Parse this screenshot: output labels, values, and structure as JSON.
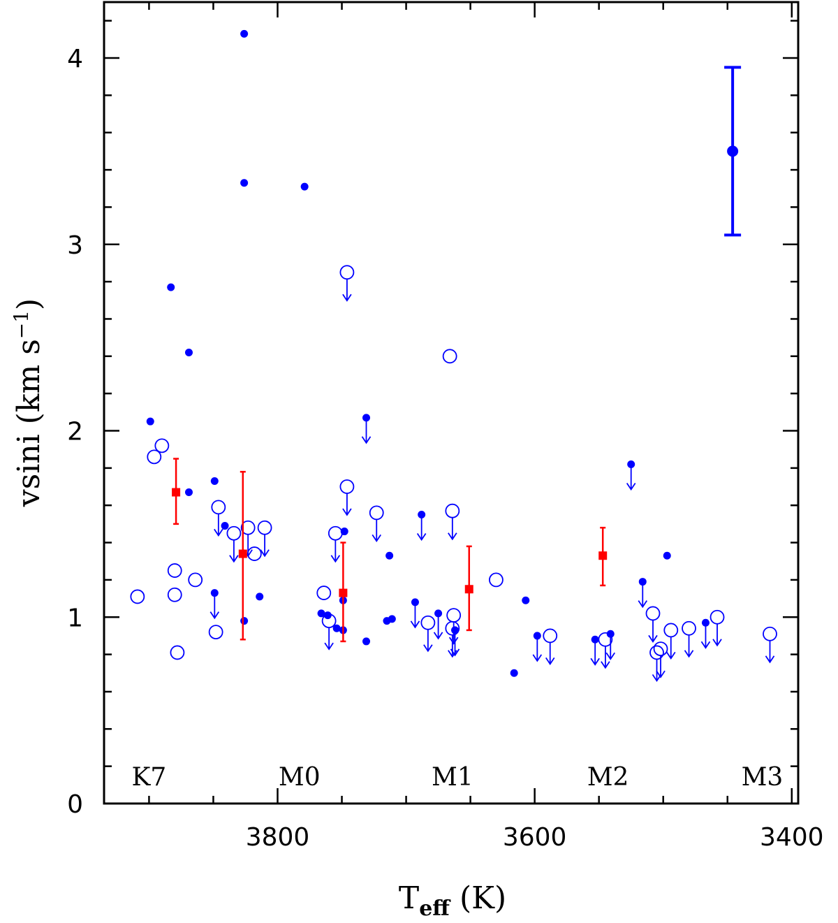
{
  "chart_data": {
    "type": "scatter",
    "title": "",
    "xlabel_main": "T",
    "xlabel_sub": "eff",
    "xlabel_unit": "(K)",
    "ylabel": "vsini (km s",
    "ylabel_sup": "−1",
    "ylabel_close": ")",
    "xlim": [
      3935,
      3395
    ],
    "ylim": [
      0,
      4.3
    ],
    "x_reversed": true,
    "x_ticks": [
      {
        "value": 3800,
        "label": "3800"
      },
      {
        "value": 3600,
        "label": "3600"
      },
      {
        "value": 3400,
        "label": "3400"
      }
    ],
    "y_ticks": [
      {
        "value": 0,
        "label": "0"
      },
      {
        "value": 1,
        "label": "1"
      },
      {
        "value": 2,
        "label": "2"
      },
      {
        "value": 3,
        "label": "3"
      },
      {
        "value": 4,
        "label": "4"
      }
    ],
    "spectral_types": [
      {
        "label": "K7",
        "x": 3900
      },
      {
        "label": "M0",
        "x": 3783
      },
      {
        "label": "M1",
        "x": 3664
      },
      {
        "label": "M2",
        "x": 3543
      },
      {
        "label": "M3",
        "x": 3423
      }
    ],
    "colors": {
      "measured": "#0000ff",
      "binned": "#ff0000",
      "axes": "#000000"
    },
    "series": [
      {
        "kind": "filled",
        "points": [
          {
            "x": 3826,
            "y": 4.13
          },
          {
            "x": 3826,
            "y": 3.33
          },
          {
            "x": 3779,
            "y": 3.31
          },
          {
            "x": 3883,
            "y": 2.77
          },
          {
            "x": 3869,
            "y": 2.42
          },
          {
            "x": 3899,
            "y": 2.05
          },
          {
            "x": 3869,
            "y": 1.67
          },
          {
            "x": 3849,
            "y": 1.73
          },
          {
            "x": 3841,
            "y": 1.49
          },
          {
            "x": 3748,
            "y": 1.46
          },
          {
            "x": 3713,
            "y": 1.33
          },
          {
            "x": 3497,
            "y": 1.33
          },
          {
            "x": 3814,
            "y": 1.11
          },
          {
            "x": 3607,
            "y": 1.09
          },
          {
            "x": 3749,
            "y": 1.09
          },
          {
            "x": 3826,
            "y": 0.98
          },
          {
            "x": 3711,
            "y": 0.99
          },
          {
            "x": 3715,
            "y": 0.98
          },
          {
            "x": 3766,
            "y": 1.02
          },
          {
            "x": 3761,
            "y": 1.01
          },
          {
            "x": 3754,
            "y": 0.94
          },
          {
            "x": 3749,
            "y": 0.93
          },
          {
            "x": 3731,
            "y": 0.87
          },
          {
            "x": 3616,
            "y": 0.7
          }
        ]
      },
      {
        "kind": "filled-upper-limit",
        "points": [
          {
            "x": 3731,
            "y": 2.07
          },
          {
            "x": 3688,
            "y": 1.55
          },
          {
            "x": 3849,
            "y": 1.13
          },
          {
            "x": 3693,
            "y": 1.08
          },
          {
            "x": 3675,
            "y": 1.02
          },
          {
            "x": 3662,
            "y": 0.93
          },
          {
            "x": 3598,
            "y": 0.9
          },
          {
            "x": 3553,
            "y": 0.88
          },
          {
            "x": 3541,
            "y": 0.91
          },
          {
            "x": 3525,
            "y": 1.82
          },
          {
            "x": 3516,
            "y": 1.19
          },
          {
            "x": 3467,
            "y": 0.97
          }
        ]
      },
      {
        "kind": "open",
        "points": [
          {
            "x": 3890,
            "y": 1.92
          },
          {
            "x": 3896,
            "y": 1.86
          },
          {
            "x": 3880,
            "y": 1.25
          },
          {
            "x": 3880,
            "y": 1.12
          },
          {
            "x": 3909,
            "y": 1.11
          },
          {
            "x": 3864,
            "y": 1.2
          },
          {
            "x": 3878,
            "y": 0.81
          },
          {
            "x": 3848,
            "y": 0.92
          },
          {
            "x": 3818,
            "y": 1.34
          },
          {
            "x": 3764,
            "y": 1.13
          },
          {
            "x": 3666,
            "y": 2.4
          },
          {
            "x": 3630,
            "y": 1.2
          }
        ]
      },
      {
        "kind": "open-upper-limit",
        "points": [
          {
            "x": 3746,
            "y": 2.85
          },
          {
            "x": 3746,
            "y": 1.7
          },
          {
            "x": 3846,
            "y": 1.59
          },
          {
            "x": 3834,
            "y": 1.45
          },
          {
            "x": 3823,
            "y": 1.48
          },
          {
            "x": 3810,
            "y": 1.48
          },
          {
            "x": 3755,
            "y": 1.45
          },
          {
            "x": 3723,
            "y": 1.56
          },
          {
            "x": 3664,
            "y": 1.57
          },
          {
            "x": 3760,
            "y": 0.98
          },
          {
            "x": 3683,
            "y": 0.97
          },
          {
            "x": 3663,
            "y": 1.01
          },
          {
            "x": 3664,
            "y": 0.94
          },
          {
            "x": 3588,
            "y": 0.9
          },
          {
            "x": 3545,
            "y": 0.88
          },
          {
            "x": 3508,
            "y": 1.02
          },
          {
            "x": 3505,
            "y": 0.81
          },
          {
            "x": 3502,
            "y": 0.83
          },
          {
            "x": 3494,
            "y": 0.93
          },
          {
            "x": 3480,
            "y": 0.94
          },
          {
            "x": 3458,
            "y": 1.0
          },
          {
            "x": 3417,
            "y": 0.91
          }
        ]
      },
      {
        "kind": "binned-mean",
        "points": [
          {
            "x": 3879,
            "y": 1.67,
            "ylo": 1.5,
            "yhi": 1.85
          },
          {
            "x": 3827,
            "y": 1.34,
            "ylo": 0.88,
            "yhi": 1.78
          },
          {
            "x": 3749,
            "y": 1.13,
            "ylo": 0.87,
            "yhi": 1.4
          },
          {
            "x": 3651,
            "y": 1.15,
            "ylo": 0.93,
            "yhi": 1.38
          },
          {
            "x": 3547,
            "y": 1.33,
            "ylo": 1.17,
            "yhi": 1.48
          }
        ]
      },
      {
        "kind": "typical-error",
        "points": [
          {
            "x": 3446,
            "y": 3.5,
            "ylo": 3.05,
            "yhi": 3.95
          }
        ]
      }
    ]
  }
}
